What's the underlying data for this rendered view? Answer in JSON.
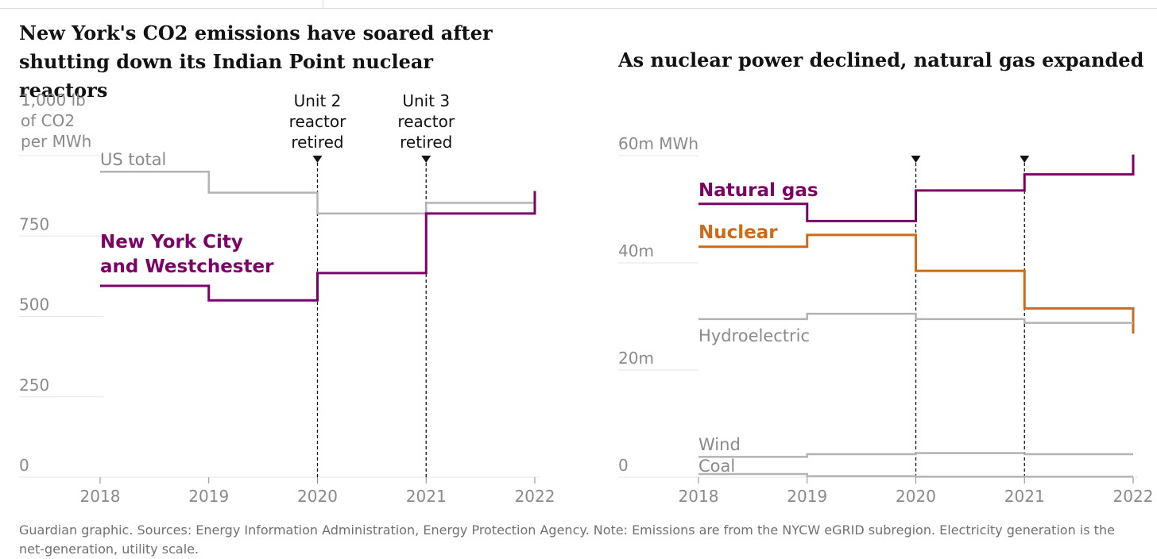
{
  "chart_data": [
    {
      "type": "line",
      "step": true,
      "title": "New York's CO2 emissions have soared after shutting down its Indian Point nuclear reactors",
      "ylabel": "1,000 lb of CO2 per MWh",
      "ylabel_lines": [
        "1,000 lb",
        "of CO2",
        "per MWh"
      ],
      "y_ticks": [
        "0",
        "250",
        "500",
        "750",
        ""
      ],
      "ylim": [
        0,
        1000
      ],
      "x_ticks": [
        "2018",
        "2019",
        "2020",
        "2021",
        "2022"
      ],
      "xlim": [
        2018,
        2022
      ],
      "series": [
        {
          "name": "US total",
          "label_lines": [
            "US total"
          ],
          "color": "#b3b3b3",
          "values": [
            {
              "x": 2018,
              "y": 950
            },
            {
              "x": 2019,
              "y": 885
            },
            {
              "x": 2020,
              "y": 820
            },
            {
              "x": 2021,
              "y": 853
            }
          ],
          "end_x": 2022
        },
        {
          "name": "New York City and Westchester",
          "label_lines": [
            "New York City",
            "and Westchester"
          ],
          "color": "#7d0068",
          "values": [
            {
              "x": 2018,
              "y": 595
            },
            {
              "x": 2019,
              "y": 550
            },
            {
              "x": 2020,
              "y": 635
            },
            {
              "x": 2021,
              "y": 820
            },
            {
              "x": 2022,
              "y": 890
            }
          ],
          "end_x": 2022
        }
      ],
      "annotations": [
        {
          "x": 2020,
          "label_lines": [
            "Unit 2",
            "reactor",
            "retired"
          ]
        },
        {
          "x": 2021,
          "label_lines": [
            "Unit 3",
            "reactor",
            "retired"
          ]
        }
      ]
    },
    {
      "type": "line",
      "step": true,
      "title": "As nuclear power declined, natural gas expanded",
      "y_ticks": [
        "0",
        "20m",
        "40m",
        "60m MWh"
      ],
      "ylim": [
        0,
        60
      ],
      "x_ticks": [
        "2018",
        "2019",
        "2020",
        "2021",
        "2022"
      ],
      "xlim": [
        2018,
        2022
      ],
      "series": [
        {
          "name": "Natural gas",
          "label_lines": [
            "Natural gas"
          ],
          "color": "#7d0068",
          "bold": true,
          "values": [
            {
              "x": 2018,
              "y": 51
            },
            {
              "x": 2019,
              "y": 47.8
            },
            {
              "x": 2020,
              "y": 53.5
            },
            {
              "x": 2021,
              "y": 56.5
            },
            {
              "x": 2022,
              "y": 60.2
            }
          ],
          "end_x": 2022
        },
        {
          "name": "Nuclear",
          "label_lines": [
            "Nuclear"
          ],
          "color": "#cf6a17",
          "bold": true,
          "values": [
            {
              "x": 2018,
              "y": 43
            },
            {
              "x": 2019,
              "y": 45.2
            },
            {
              "x": 2020,
              "y": 38.5
            },
            {
              "x": 2021,
              "y": 31.5
            },
            {
              "x": 2022,
              "y": 26.8
            }
          ],
          "end_x": 2022
        },
        {
          "name": "Hydroelectric",
          "label_lines": [
            "Hydroelectric"
          ],
          "color": "#b3b3b3",
          "values": [
            {
              "x": 2018,
              "y": 29.5
            },
            {
              "x": 2019,
              "y": 30.5
            },
            {
              "x": 2020,
              "y": 29.5
            },
            {
              "x": 2021,
              "y": 28.8
            }
          ],
          "end_x": 2022
        },
        {
          "name": "Wind",
          "label_lines": [
            "Wind"
          ],
          "color": "#b3b3b3",
          "values": [
            {
              "x": 2018,
              "y": 3.8
            },
            {
              "x": 2019,
              "y": 4.3
            },
            {
              "x": 2020,
              "y": 4.5
            },
            {
              "x": 2021,
              "y": 4.3
            }
          ],
          "end_x": 2022
        },
        {
          "name": "Coal",
          "label_lines": [
            "Coal"
          ],
          "color": "#b3b3b3",
          "values": [
            {
              "x": 2018,
              "y": 0.6
            },
            {
              "x": 2019,
              "y": 0.2
            },
            {
              "x": 2020,
              "y": 0.1
            }
          ],
          "end_x": 2022
        }
      ],
      "annotations": [
        {
          "x": 2020,
          "label_lines": []
        },
        {
          "x": 2021,
          "label_lines": []
        }
      ]
    }
  ],
  "footer": "Guardian graphic. Sources: Energy Information Administration, Energy Protection Agency. Note: Emissions are from the NYCW eGRID subregion. Electricity generation is the net-generation, utility scale."
}
